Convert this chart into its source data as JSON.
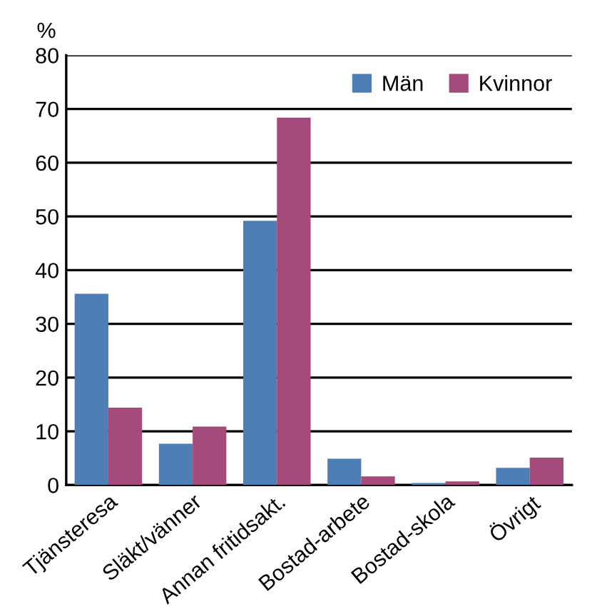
{
  "chart_data": {
    "type": "bar",
    "ylabel": "%",
    "categories": [
      "Tjänsteresa",
      "Släkt/vänner",
      "Annan fritidsakt.",
      "Bostad-arbete",
      "Bostad-skola",
      "Övrigt"
    ],
    "series": [
      {
        "name": "Män",
        "color": "#4d7eb4",
        "values": [
          35.6,
          7.7,
          49.2,
          4.9,
          0.4,
          3.2
        ]
      },
      {
        "name": "Kvinnor",
        "color": "#a54b7b",
        "values": [
          14.4,
          10.9,
          68.4,
          1.6,
          0.7,
          5.1
        ]
      }
    ],
    "ylim": [
      0,
      80
    ],
    "yticks": [
      0,
      10,
      20,
      30,
      40,
      50,
      60,
      70,
      80
    ],
    "grid": "y",
    "legend": "top right"
  }
}
